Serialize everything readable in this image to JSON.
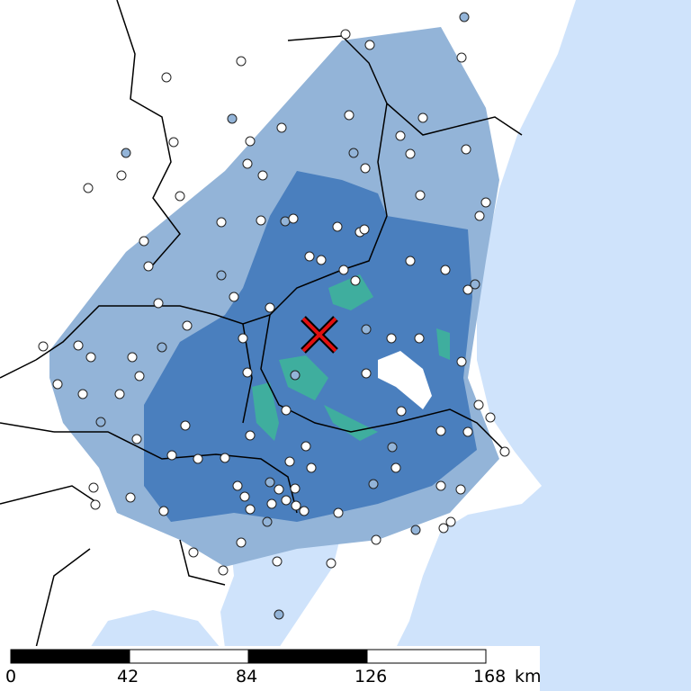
{
  "scale_bar": {
    "ticks": [
      "0",
      "42",
      "84",
      "126",
      "168"
    ],
    "unit": "km"
  }
}
